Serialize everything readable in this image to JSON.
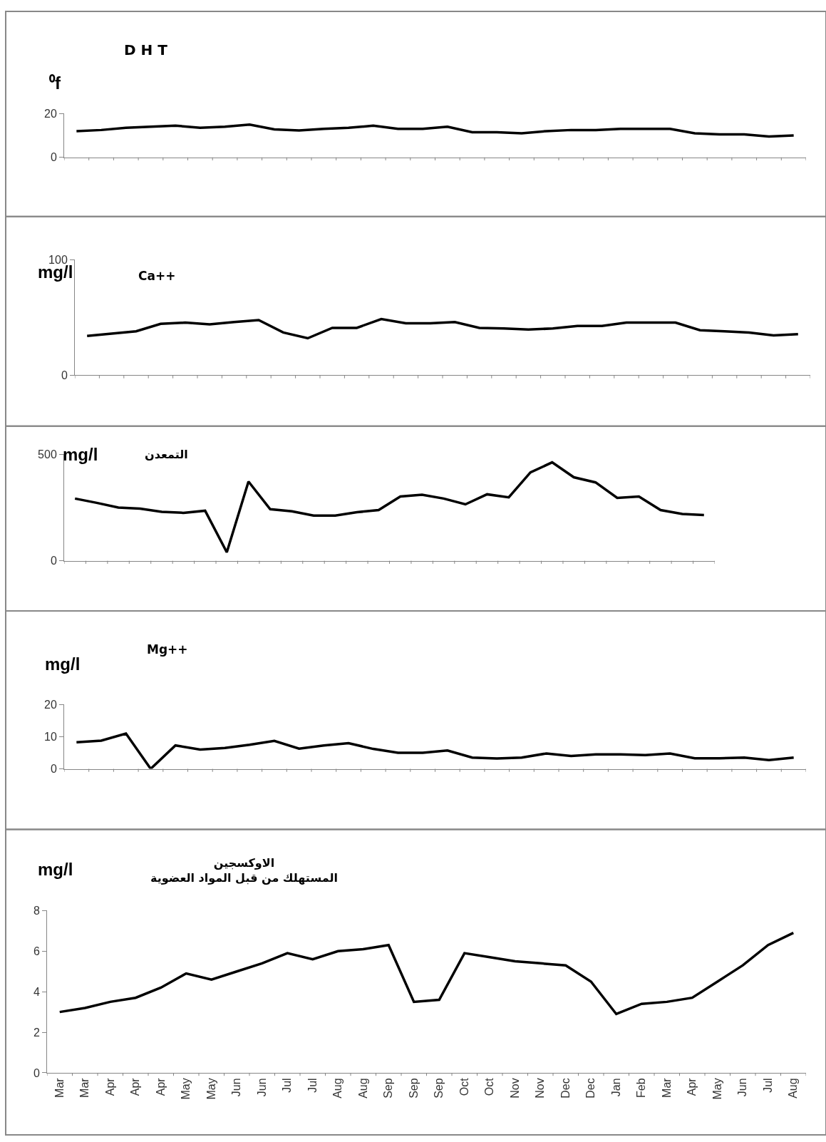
{
  "chart_data": [
    {
      "type": "line",
      "title": "D H T",
      "ylabel": "⁰f",
      "color": "#000000",
      "ylim": [
        0,
        20
      ],
      "yticks": [
        0,
        20
      ],
      "tick_labels": "y",
      "categories": [
        null,
        null,
        null,
        null,
        null,
        null,
        null,
        null,
        null,
        null,
        null,
        null,
        null,
        null,
        null,
        null,
        null,
        null,
        null,
        null,
        null,
        null,
        null,
        null,
        null,
        null,
        null,
        null,
        null,
        null
      ],
      "values": [
        12,
        12.5,
        13.5,
        14,
        14.5,
        13.5,
        14,
        15,
        12.8,
        12.3,
        13,
        13.5,
        14.5,
        13,
        13,
        14,
        11.5,
        11.5,
        11,
        12,
        12.5,
        12.5,
        13,
        13,
        13,
        11,
        10.5,
        10.5,
        9.5,
        10
      ]
    },
    {
      "type": "line",
      "title": "Ca++",
      "ylabel": "mg/l",
      "color": "#000000",
      "ylim": [
        0,
        100
      ],
      "yticks": [
        0,
        100
      ],
      "tick_labels": "y",
      "categories": [
        null,
        null,
        null,
        null,
        null,
        null,
        null,
        null,
        null,
        null,
        null,
        null,
        null,
        null,
        null,
        null,
        null,
        null,
        null,
        null,
        null,
        null,
        null,
        null,
        null,
        null,
        null,
        null,
        null,
        null
      ],
      "values": [
        34,
        36,
        38,
        44.5,
        45.5,
        44,
        46,
        47.7,
        37,
        32,
        41,
        41,
        48.6,
        45,
        45,
        46,
        41,
        40.5,
        39.5,
        40.5,
        42.7,
        42.7,
        45.5,
        45.5,
        45.5,
        39,
        38,
        37,
        34.5,
        35.5
      ]
    },
    {
      "type": "line",
      "title": "التمعدن",
      "ylabel": "mg/l",
      "color": "#000000",
      "ylim": [
        0,
        500
      ],
      "yticks": [
        0,
        500
      ],
      "tick_labels": "y",
      "categories": [
        null,
        null,
        null,
        null,
        null,
        null,
        null,
        null,
        null,
        null,
        null,
        null,
        null,
        null,
        null,
        null,
        null,
        null,
        null,
        null,
        null,
        null,
        null,
        null,
        null,
        null,
        null,
        null,
        null,
        null
      ],
      "values": [
        292,
        272,
        250,
        245,
        230,
        225,
        235,
        40,
        372,
        242,
        232,
        212,
        212,
        228,
        238,
        302,
        310,
        292,
        265,
        312,
        298,
        415,
        462,
        392,
        368,
        295,
        302,
        238,
        220,
        215
      ]
    },
    {
      "type": "line",
      "title": "Mg++",
      "ylabel": "mg/l",
      "color": "#000000",
      "ylim": [
        0,
        20
      ],
      "yticks": [
        0,
        10,
        20
      ],
      "tick_labels": "y",
      "categories": [
        null,
        null,
        null,
        null,
        null,
        null,
        null,
        null,
        null,
        null,
        null,
        null,
        null,
        null,
        null,
        null,
        null,
        null,
        null,
        null,
        null,
        null,
        null,
        null,
        null,
        null,
        null,
        null,
        null,
        null
      ],
      "values": [
        8.3,
        8.8,
        11,
        0,
        7.3,
        6,
        6.5,
        7.5,
        8.7,
        6.3,
        7.3,
        8,
        6.2,
        5,
        5,
        5.7,
        3.5,
        3.2,
        3.5,
        4.8,
        4,
        4.5,
        4.5,
        4.3,
        4.8,
        3.3,
        3.3,
        3.5,
        2.7,
        3.5
      ]
    },
    {
      "type": "line",
      "title": "الاوكسجين\nالمستهلك من قبل المواد العضوية",
      "ylabel": "mg/l",
      "color": "#000000",
      "ylim": [
        0,
        8
      ],
      "yticks": [
        0,
        2,
        4,
        6,
        8
      ],
      "categories": [
        "Mar",
        "Mar",
        "Apr",
        "Apr",
        "Apr",
        "May",
        "May",
        "Jun",
        "Jun",
        "Jul",
        "Jul",
        "Aug",
        "Aug",
        "Sep",
        "Sep",
        "Sep",
        "Oct",
        "Oct",
        "Nov",
        "Nov",
        "Dec",
        "Dec",
        "Jan",
        "Feb",
        "Mar",
        "Apr",
        "May",
        "Jun",
        "Jul",
        "Aug"
      ],
      "values": [
        3.0,
        3.2,
        3.5,
        3.7,
        4.2,
        4.9,
        4.6,
        5.0,
        5.4,
        5.9,
        5.6,
        6.0,
        6.1,
        6.3,
        3.5,
        3.6,
        5.9,
        5.7,
        5.5,
        5.4,
        5.3,
        4.5,
        2.9,
        3.4,
        3.5,
        3.7,
        4.5,
        5.3,
        6.3,
        6.9
      ]
    }
  ]
}
